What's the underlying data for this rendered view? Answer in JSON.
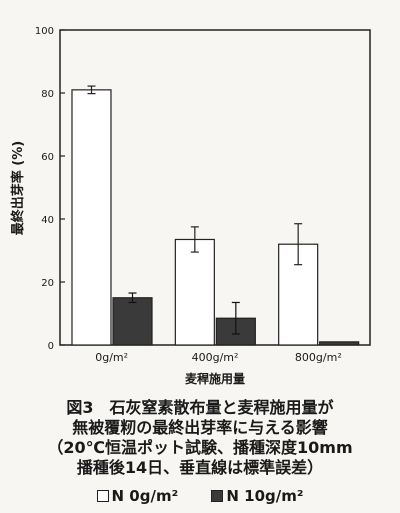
{
  "chart_data": {
    "type": "bar",
    "categories": [
      "0g/m²",
      "400g/m²",
      "800g/m²"
    ],
    "xlabel": "麦稈施用量",
    "ylabel": "最終出芽率 (%)",
    "ylim": [
      0,
      100
    ],
    "yticks": [
      0,
      20,
      40,
      60,
      80,
      100
    ],
    "grid": false,
    "series": [
      {
        "name": "N 0g/m²",
        "color": "#ffffff",
        "values": [
          81,
          33.5,
          32
        ],
        "errors": [
          1.2,
          4,
          6.5
        ]
      },
      {
        "name": "N 10g/m²",
        "color": "#3a3a3a",
        "values": [
          15,
          8.5,
          1
        ],
        "errors": [
          1.5,
          5,
          0.3
        ]
      }
    ]
  },
  "caption": {
    "line1": "図3　石灰窒素散布量と麦稈施用量が",
    "line2": "無被覆籾の最終出芽率に与える影響",
    "line3": "（20℃恒温ポット試験、播種深度10mm",
    "line4": "播種後14日、垂直線は標準誤差）"
  }
}
